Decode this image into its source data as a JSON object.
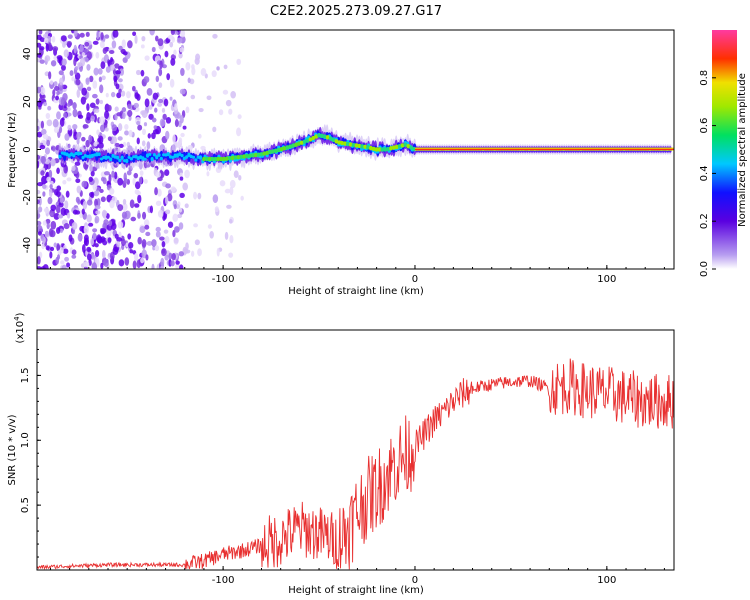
{
  "figure_title": "C2E2.2025.273.09.27.G17",
  "chart_data": [
    {
      "type": "heatmap",
      "name": "spectrogram",
      "xlabel": "Height of straight line (km)",
      "ylabel": "Frequency (Hz)",
      "xlim": [
        -197,
        135
      ],
      "ylim": [
        -50,
        50
      ],
      "x_ticks": [
        -100,
        0,
        100
      ],
      "x_tick_labels": [
        "-100",
        "0",
        "100"
      ],
      "y_ticks": [
        -40,
        -20,
        0,
        20,
        40
      ],
      "y_tick_labels": [
        "-40",
        "-20",
        "0",
        "20",
        "40"
      ],
      "colorbar": {
        "label": "Normalized spectral amplitude",
        "range": [
          0,
          1
        ],
        "ticks": [
          0.0,
          0.2,
          0.4,
          0.6,
          0.8
        ],
        "tick_labels": [
          "0.0",
          "0.2",
          "0.4",
          "0.6",
          "0.8"
        ],
        "colormap": [
          "#ffffff",
          "#8a2be2",
          "#1010ff",
          "#00d0e0",
          "#20e020",
          "#e8e800",
          "#ff2000",
          "#ff40a0"
        ]
      },
      "ridge_frequency_hz": [
        [
          -197,
          -3
        ],
        [
          -180,
          -2
        ],
        [
          -165,
          -3
        ],
        [
          -150,
          -4
        ],
        [
          -140,
          -3
        ],
        [
          -130,
          -3
        ],
        [
          -120,
          -3
        ],
        [
          -110,
          -4
        ],
        [
          -100,
          -4
        ],
        [
          -90,
          -3
        ],
        [
          -80,
          -2
        ],
        [
          -70,
          0
        ],
        [
          -62,
          2
        ],
        [
          -55,
          4
        ],
        [
          -50,
          6
        ],
        [
          -45,
          5
        ],
        [
          -40,
          3
        ],
        [
          -33,
          2
        ],
        [
          -25,
          1
        ],
        [
          -20,
          0
        ],
        [
          -15,
          0
        ],
        [
          -10,
          1
        ],
        [
          -5,
          2
        ],
        [
          0,
          0
        ],
        [
          50,
          0
        ],
        [
          135,
          0
        ]
      ]
    },
    {
      "type": "line",
      "name": "snr",
      "xlabel": "Height of straight line (km)",
      "ylabel": "SNR (10 * v/v)",
      "y_exponent_label": "(x10",
      "y_exponent_power": "4",
      "y_exponent_close": ")",
      "xlim": [
        -197,
        135
      ],
      "ylim": [
        0,
        1.85
      ],
      "x_ticks": [
        -100,
        0,
        100
      ],
      "x_tick_labels": [
        "-100",
        "0",
        "100"
      ],
      "y_ticks": [
        0.5,
        1.0,
        1.5
      ],
      "y_tick_labels": [
        "0.5",
        "1.0",
        "1.5"
      ],
      "color": "#e83030",
      "series": [
        {
          "name": "SNR (x10^4)",
          "x": [
            -197,
            -180,
            -160,
            -140,
            -120,
            -110,
            -100,
            -90,
            -80,
            -70,
            -65,
            -60,
            -55,
            -50,
            -45,
            -40,
            -35,
            -30,
            -25,
            -20,
            -15,
            -10,
            -5,
            0,
            5,
            10,
            15,
            20,
            25,
            30,
            40,
            50,
            60,
            70,
            80,
            90,
            100,
            110,
            120,
            135
          ],
          "y": [
            0.02,
            0.03,
            0.04,
            0.04,
            0.04,
            0.07,
            0.12,
            0.15,
            0.19,
            0.24,
            0.28,
            0.32,
            0.3,
            0.28,
            0.25,
            0.22,
            0.3,
            0.45,
            0.55,
            0.62,
            0.72,
            0.82,
            0.88,
            0.95,
            1.05,
            1.15,
            1.22,
            1.3,
            1.36,
            1.4,
            1.43,
            1.45,
            1.46,
            1.4,
            1.42,
            1.38,
            1.36,
            1.33,
            1.3,
            1.3
          ]
        }
      ]
    }
  ]
}
